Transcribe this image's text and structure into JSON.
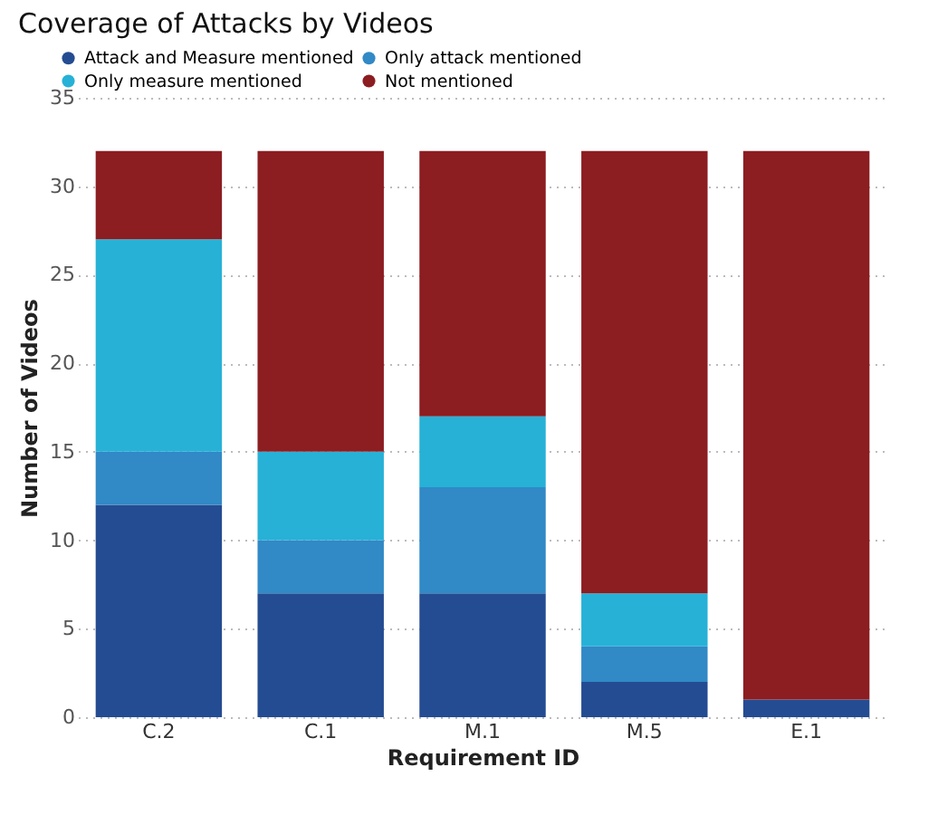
{
  "chart_data": {
    "type": "bar",
    "title": "Coverage of Attacks by Videos",
    "xlabel": "Requirement ID",
    "ylabel": "Number of Videos",
    "categories": [
      "C.2",
      "C.1",
      "M.1",
      "M.5",
      "E.1"
    ],
    "stacked": true,
    "series": [
      {
        "name": "Attack and Measure mentioned",
        "color": "#244c92",
        "values": [
          12,
          7,
          7,
          2,
          1
        ]
      },
      {
        "name": "Only attack mentioned",
        "color": "#3189c6",
        "values": [
          3,
          3,
          6,
          2,
          0
        ]
      },
      {
        "name": "Only measure mentioned",
        "color": "#27b1d7",
        "values": [
          12,
          5,
          4,
          3,
          0
        ]
      },
      {
        "name": "Not mentioned",
        "color": "#8c1d21",
        "values": [
          5,
          17,
          15,
          25,
          31
        ]
      }
    ],
    "ylim": [
      0,
      35
    ],
    "yticks": [
      0,
      5,
      10,
      15,
      20,
      25,
      30,
      35
    ],
    "grid": "y",
    "legend": "top left"
  }
}
